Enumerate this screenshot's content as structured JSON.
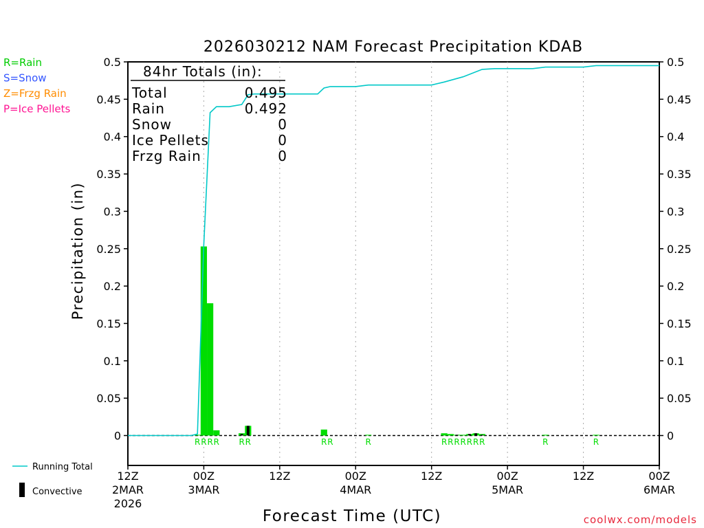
{
  "chart_data": {
    "type": "bar",
    "title": "2026030212 NAM Forecast Precipitation KDAB",
    "ylabel": "Precipitation (in)",
    "xlabel": "Forecast Time (UTC)",
    "ylim": [
      -0.04,
      0.5
    ],
    "xlim_hours": [
      0,
      84
    ],
    "yticks": [
      0,
      0.05,
      0.1,
      0.15,
      0.2,
      0.25,
      0.3,
      0.35,
      0.4,
      0.45,
      0.5
    ],
    "ytick_labels": [
      "0",
      "0.05",
      "0.1",
      "0.15",
      "0.2",
      "0.25",
      "0.3",
      "0.35",
      "0.4",
      "0.45",
      "0.5"
    ],
    "xticks": [
      {
        "hour": 0,
        "lines": [
          "12Z",
          "2MAR",
          "2026"
        ]
      },
      {
        "hour": 12,
        "lines": [
          "00Z",
          "3MAR"
        ]
      },
      {
        "hour": 24,
        "lines": [
          "12Z"
        ]
      },
      {
        "hour": 36,
        "lines": [
          "00Z",
          "4MAR"
        ]
      },
      {
        "hour": 48,
        "lines": [
          "12Z"
        ]
      },
      {
        "hour": 60,
        "lines": [
          "00Z",
          "5MAR"
        ]
      },
      {
        "hour": 72,
        "lines": [
          "12Z"
        ]
      },
      {
        "hour": 84,
        "lines": [
          "00Z",
          "6MAR"
        ]
      }
    ],
    "precip_type_legend": [
      {
        "label": "R=Rain",
        "color": "#00cc00"
      },
      {
        "label": "S=Snow",
        "color": "#3355ff"
      },
      {
        "label": "Z=Frzg Rain",
        "color": "#ff8c00"
      },
      {
        "label": "P=Ice Pellets",
        "color": "#ff1493"
      }
    ],
    "series_legend": {
      "running_total": "Running Total",
      "convective": "Convective"
    },
    "totals": {
      "heading": "84hr Totals (in):",
      "rows": [
        {
          "label": "Total",
          "value": "0.495"
        },
        {
          "label": "Rain",
          "value": "0.492"
        },
        {
          "label": "Snow",
          "value": "0"
        },
        {
          "label": "Ice Pellets",
          "value": "0"
        },
        {
          "label": "Frzg Rain",
          "value": "0"
        }
      ]
    },
    "precip_bars": [
      {
        "hour": 11,
        "value": 0.001,
        "convective": 0
      },
      {
        "hour": 12,
        "value": 0.253,
        "convective": 0
      },
      {
        "hour": 13,
        "value": 0.177,
        "convective": 0
      },
      {
        "hour": 14,
        "value": 0.007,
        "convective": 0
      },
      {
        "hour": 18,
        "value": 0.003,
        "convective": 0.002
      },
      {
        "hour": 19,
        "value": 0.013,
        "convective": 0.013
      },
      {
        "hour": 31,
        "value": 0.008,
        "convective": 0
      },
      {
        "hour": 38,
        "value": 0.001,
        "convective": 0
      },
      {
        "hour": 50,
        "value": 0.003,
        "convective": 0
      },
      {
        "hour": 51,
        "value": 0.002,
        "convective": 0
      },
      {
        "hour": 52,
        "value": 0.001,
        "convective": 0.001
      },
      {
        "hour": 53,
        "value": 0.001,
        "convective": 0
      },
      {
        "hour": 54,
        "value": 0.002,
        "convective": 0.002
      },
      {
        "hour": 55,
        "value": 0.003,
        "convective": 0.003
      },
      {
        "hour": 56,
        "value": 0.002,
        "convective": 0.001
      },
      {
        "hour": 66,
        "value": 0.001,
        "convective": 0
      },
      {
        "hour": 74,
        "value": 0.001,
        "convective": 0
      }
    ],
    "ptype_labels": [
      {
        "hour": 11,
        "text": "R"
      },
      {
        "hour": 12,
        "text": "R"
      },
      {
        "hour": 13,
        "text": "R"
      },
      {
        "hour": 14,
        "text": "R"
      },
      {
        "hour": 18,
        "text": "R"
      },
      {
        "hour": 19,
        "text": "R"
      },
      {
        "hour": 31,
        "text": "R"
      },
      {
        "hour": 32,
        "text": "R"
      },
      {
        "hour": 38,
        "text": "R"
      },
      {
        "hour": 50,
        "text": "R"
      },
      {
        "hour": 51,
        "text": "R"
      },
      {
        "hour": 52,
        "text": "R"
      },
      {
        "hour": 53,
        "text": "R"
      },
      {
        "hour": 54,
        "text": "R"
      },
      {
        "hour": 55,
        "text": "R"
      },
      {
        "hour": 56,
        "text": "R"
      },
      {
        "hour": 66,
        "text": "R"
      },
      {
        "hour": 74,
        "text": "R"
      }
    ],
    "running_total": {
      "x": [
        0,
        10,
        11,
        12,
        13,
        14,
        16,
        18,
        19,
        20,
        24,
        30,
        31,
        32,
        36,
        38,
        40,
        48,
        50,
        53,
        56,
        58,
        60,
        64,
        66,
        72,
        74,
        84
      ],
      "y": [
        0,
        0,
        0.002,
        0.255,
        0.432,
        0.44,
        0.44,
        0.443,
        0.456,
        0.457,
        0.457,
        0.457,
        0.465,
        0.467,
        0.467,
        0.469,
        0.469,
        0.469,
        0.473,
        0.48,
        0.49,
        0.491,
        0.491,
        0.491,
        0.493,
        0.493,
        0.495,
        0.495
      ]
    },
    "colors": {
      "rain": "#00dd00",
      "running_total": "#00c8c8",
      "convective": "#000000",
      "grid": "#aaaaaa",
      "credit": "#e8283c"
    }
  },
  "credit": "coolwx.com/models"
}
